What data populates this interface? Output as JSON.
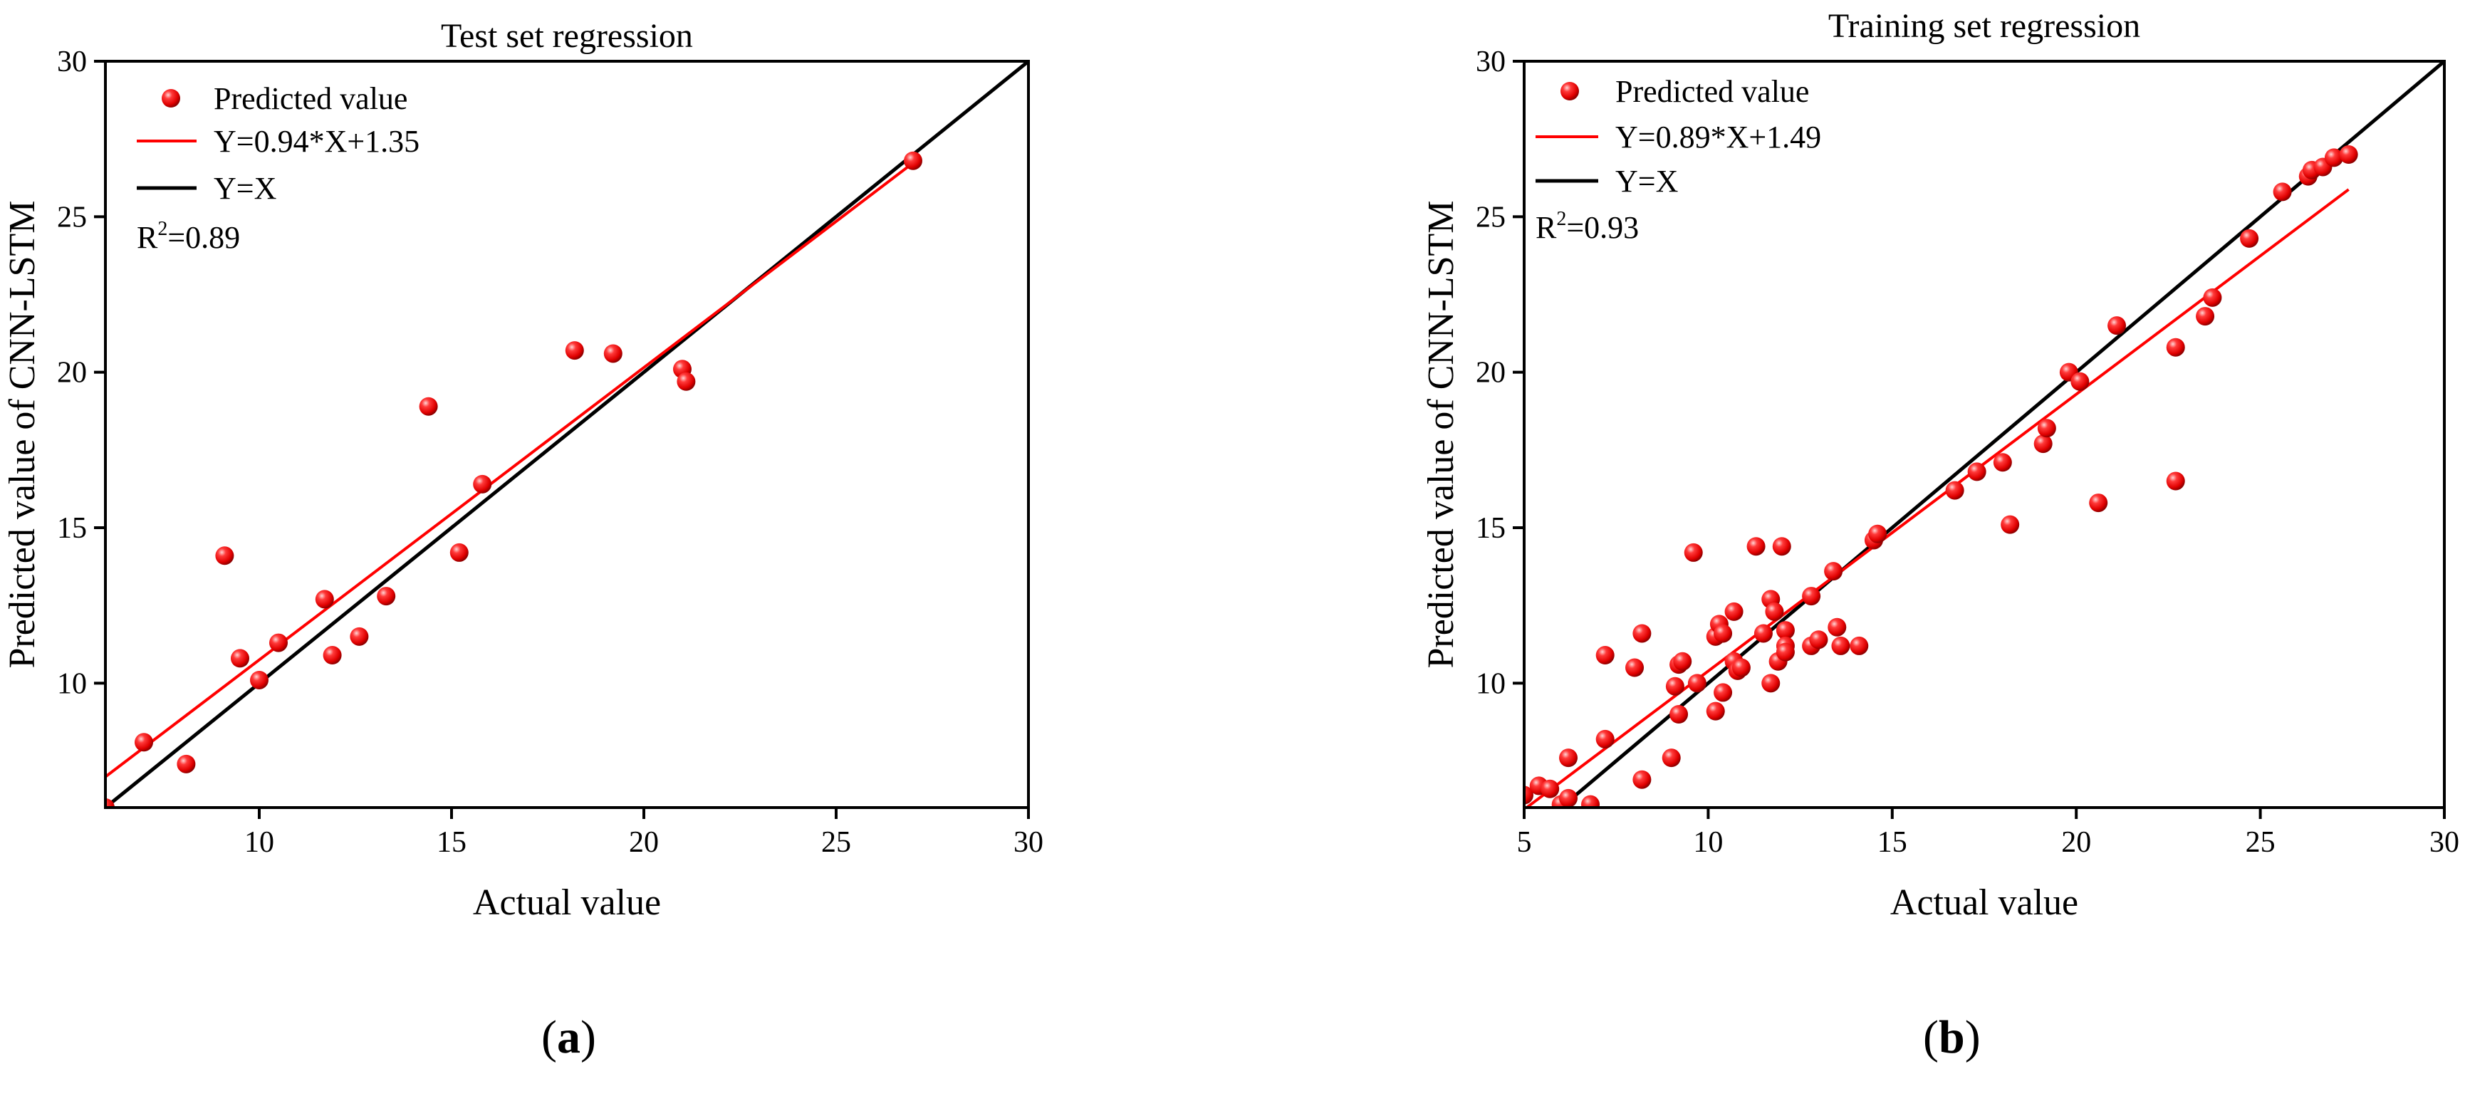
{
  "chart_data": [
    {
      "type": "scatter",
      "panel_label": "(a)",
      "panel_letter": "a",
      "title": "Test set regression",
      "xlabel": "Actual value",
      "ylabel": "Predicted value of CNN-LSTM",
      "xlim": [
        6,
        30
      ],
      "ylim": [
        6,
        30
      ],
      "xticks": [
        10,
        15,
        20,
        25,
        30
      ],
      "yticks": [
        10,
        15,
        20,
        25,
        30
      ],
      "legend": {
        "placement": "top-left",
        "scatter_label": "Predicted value",
        "fit_label": "Y=0.94*X+1.35",
        "identity_label": "Y=X"
      },
      "r2": {
        "prefix": "R",
        "sup": "2",
        "value": "=0.89"
      },
      "fit": {
        "slope": 0.94,
        "intercept": 1.35,
        "x_range": [
          6,
          27
        ]
      },
      "identity": {
        "x_range": [
          6,
          30
        ]
      },
      "colors": {
        "points": "#ff0000",
        "fit": "#ff0000",
        "identity": "#000000"
      },
      "points": [
        [
          6.0,
          6.0
        ],
        [
          7.0,
          8.1
        ],
        [
          8.1,
          7.4
        ],
        [
          9.1,
          14.1
        ],
        [
          9.5,
          10.8
        ],
        [
          10.0,
          10.1
        ],
        [
          10.5,
          11.3
        ],
        [
          11.7,
          12.7
        ],
        [
          11.9,
          10.9
        ],
        [
          12.6,
          11.5
        ],
        [
          13.3,
          12.8
        ],
        [
          14.4,
          18.9
        ],
        [
          15.2,
          14.2
        ],
        [
          15.8,
          16.4
        ],
        [
          18.2,
          20.7
        ],
        [
          19.2,
          20.6
        ],
        [
          21.0,
          20.1
        ],
        [
          21.1,
          19.7
        ],
        [
          27.0,
          26.8
        ]
      ]
    },
    {
      "type": "scatter",
      "panel_label": "(b)",
      "panel_letter": "b",
      "title": "Training set regression",
      "xlabel": "Actual value",
      "ylabel": "Predicted value of CNN-LSTM",
      "xlim": [
        5,
        30
      ],
      "ylim": [
        6,
        30
      ],
      "xticks": [
        5,
        10,
        15,
        20,
        25,
        30
      ],
      "yticks": [
        10,
        15,
        20,
        25,
        30
      ],
      "legend": {
        "placement": "top-left",
        "scatter_label": "Predicted value",
        "fit_label": "Y=0.89*X+1.49",
        "identity_label": "Y=X"
      },
      "r2": {
        "prefix": "R",
        "sup": "2",
        "value": "=0.93"
      },
      "fit": {
        "slope": 0.89,
        "intercept": 1.49,
        "x_range": [
          5,
          27.4
        ]
      },
      "identity": {
        "x_range": [
          5,
          30
        ]
      },
      "colors": {
        "points": "#ff0000",
        "fit": "#ff0000",
        "identity": "#000000"
      },
      "points": [
        [
          5.0,
          6.4
        ],
        [
          5.4,
          6.7
        ],
        [
          5.7,
          6.6
        ],
        [
          6.0,
          6.1
        ],
        [
          6.2,
          6.3
        ],
        [
          6.2,
          7.6
        ],
        [
          6.8,
          6.1
        ],
        [
          7.2,
          8.2
        ],
        [
          7.2,
          10.9
        ],
        [
          8.0,
          10.5
        ],
        [
          8.2,
          11.6
        ],
        [
          8.2,
          6.9
        ],
        [
          9.0,
          7.6
        ],
        [
          9.1,
          9.9
        ],
        [
          9.2,
          10.6
        ],
        [
          9.2,
          9.0
        ],
        [
          9.3,
          10.7
        ],
        [
          9.6,
          14.2
        ],
        [
          9.7,
          10.0
        ],
        [
          10.2,
          11.5
        ],
        [
          10.2,
          9.1
        ],
        [
          10.3,
          11.9
        ],
        [
          10.4,
          11.6
        ],
        [
          10.4,
          9.7
        ],
        [
          10.7,
          12.3
        ],
        [
          10.7,
          10.7
        ],
        [
          10.8,
          10.4
        ],
        [
          10.9,
          10.5
        ],
        [
          11.3,
          14.4
        ],
        [
          11.5,
          11.6
        ],
        [
          11.7,
          12.7
        ],
        [
          11.7,
          10.0
        ],
        [
          11.8,
          12.3
        ],
        [
          11.9,
          10.7
        ],
        [
          12.0,
          14.4
        ],
        [
          12.1,
          11.7
        ],
        [
          12.1,
          11.2
        ],
        [
          12.1,
          11.0
        ],
        [
          12.8,
          12.8
        ],
        [
          12.8,
          11.2
        ],
        [
          13.0,
          11.4
        ],
        [
          13.4,
          13.6
        ],
        [
          13.5,
          11.8
        ],
        [
          13.6,
          11.2
        ],
        [
          14.1,
          11.2
        ],
        [
          14.5,
          14.6
        ],
        [
          14.6,
          14.8
        ],
        [
          16.7,
          16.2
        ],
        [
          17.3,
          16.8
        ],
        [
          18.0,
          17.1
        ],
        [
          18.2,
          15.1
        ],
        [
          19.1,
          17.7
        ],
        [
          19.2,
          18.2
        ],
        [
          19.8,
          20.0
        ],
        [
          20.1,
          19.7
        ],
        [
          20.6,
          15.8
        ],
        [
          21.1,
          21.5
        ],
        [
          22.7,
          20.8
        ],
        [
          22.7,
          16.5
        ],
        [
          23.5,
          21.8
        ],
        [
          23.7,
          22.4
        ],
        [
          24.7,
          24.3
        ],
        [
          25.6,
          25.8
        ],
        [
          26.3,
          26.3
        ],
        [
          26.4,
          26.5
        ],
        [
          26.7,
          26.6
        ],
        [
          27.0,
          26.9
        ],
        [
          27.4,
          27.0
        ]
      ]
    }
  ]
}
